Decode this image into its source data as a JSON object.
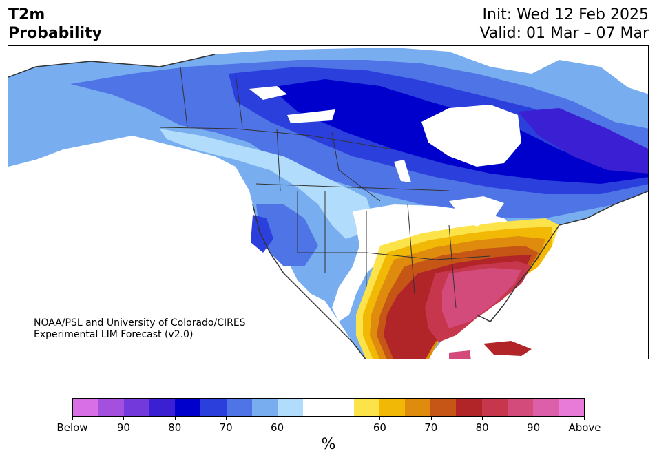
{
  "title": {
    "line1": "T2m",
    "line2": "Probability"
  },
  "init": {
    "line1": "Init: Wed 12 Feb 2025",
    "line2": "Valid: 01 Mar – 07 Mar"
  },
  "credit": {
    "line1": "NOAA/PSL and University of Colorado/CIRES",
    "line2": "Experimental LIM Forecast (v2.0)"
  },
  "colorbar": {
    "colors": [
      "#d86fe6",
      "#a450df",
      "#7339db",
      "#3a1fd3",
      "#0000cc",
      "#2a3fdc",
      "#4f74e6",
      "#78aef0",
      "#b1dcfb",
      "#ffffff",
      "#ffffff",
      "#fde34a",
      "#f2b806",
      "#de8b0e",
      "#c65616",
      "#b12427",
      "#c6374d",
      "#d34b7a",
      "#dc5faa",
      "#e87ad8"
    ],
    "labels": [
      "Below",
      "90",
      "80",
      "70",
      "60",
      "60",
      "70",
      "80",
      "90",
      "Above"
    ],
    "unit": "%"
  },
  "colors": {
    "cold_deep": "#0000cc",
    "cold_mid": "#4f74e6",
    "cold_light": "#b1dcfb",
    "warm_light": "#fde34a",
    "warm_mid": "#de8b0e",
    "warm_deep": "#b12427",
    "warm_pink": "#d34b7a"
  }
}
